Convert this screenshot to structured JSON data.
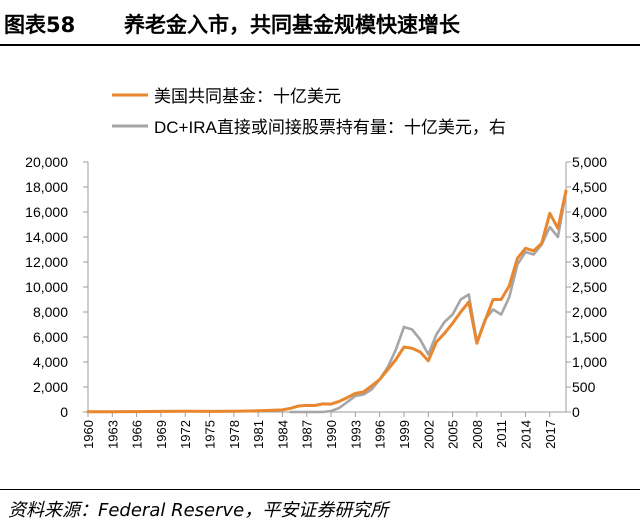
{
  "figure": {
    "label": "图表58",
    "title": "养老金入市，共同基金规模快速增长"
  },
  "source": "资料来源：Federal Reserve，平安证券研究所",
  "colors": {
    "mutual_funds": "#E8872F",
    "dc_ira": "#A6A6A6",
    "axis": "#9E9E9E",
    "text": "#000000"
  },
  "chart_data": {
    "type": "line",
    "title": "",
    "xlabel": "",
    "ylabel_left": "",
    "ylabel_right": "",
    "x_tick_labels": [
      "1960",
      "1963",
      "1966",
      "1969",
      "1972",
      "1975",
      "1978",
      "1981",
      "1984",
      "1987",
      "1990",
      "1993",
      "1996",
      "1999",
      "2002",
      "2005",
      "2008",
      "2011",
      "2014",
      "2017"
    ],
    "xlim": [
      1960,
      2019
    ],
    "ylim_left": [
      0,
      20000
    ],
    "ylim_right": [
      0,
      5000
    ],
    "y_ticks_left": [
      "0",
      "2,000",
      "4,000",
      "6,000",
      "8,000",
      "10,000",
      "12,000",
      "14,000",
      "16,000",
      "18,000",
      "20,000"
    ],
    "y_ticks_right": [
      "0",
      "500",
      "1,000",
      "1,500",
      "2,000",
      "2,500",
      "3,000",
      "3,500",
      "4,000",
      "4,500",
      "5,000"
    ],
    "grid": false,
    "legend_placement": "top-left",
    "series": [
      {
        "name": "美国共同基金：十亿美元",
        "axis": "left",
        "color": "#E8872F",
        "x": [
          1960,
          1963,
          1966,
          1969,
          1972,
          1975,
          1978,
          1980,
          1982,
          1984,
          1985,
          1986,
          1987,
          1988,
          1989,
          1990,
          1991,
          1992,
          1993,
          1994,
          1995,
          1996,
          1997,
          1998,
          1999,
          2000,
          2001,
          2002,
          2003,
          2004,
          2005,
          2006,
          2007,
          2008,
          2009,
          2010,
          2011,
          2012,
          2013,
          2014,
          2015,
          2016,
          2017,
          2018,
          2019
        ],
        "y": [
          20,
          25,
          35,
          45,
          55,
          50,
          55,
          80,
          120,
          170,
          300,
          480,
          530,
          520,
          650,
          630,
          850,
          1150,
          1500,
          1600,
          2100,
          2600,
          3400,
          4200,
          5200,
          5100,
          4800,
          4100,
          5600,
          6300,
          7100,
          8000,
          8800,
          5500,
          7300,
          9000,
          9000,
          10100,
          12300,
          13100,
          12900,
          13500,
          15900,
          14700,
          17700
        ]
      },
      {
        "name": "DC+IRA直接或间接股票持有量：十亿美元，右",
        "axis": "right",
        "color": "#A6A6A6",
        "x": [
          1985,
          1987,
          1989,
          1990,
          1991,
          1992,
          1993,
          1994,
          1995,
          1996,
          1997,
          1998,
          1999,
          2000,
          2001,
          2002,
          2003,
          2004,
          2005,
          2006,
          2007,
          2008,
          2009,
          2010,
          2011,
          2012,
          2013,
          2014,
          2015,
          2016,
          2017,
          2018,
          2019
        ],
        "y": [
          0,
          0,
          0,
          20,
          80,
          200,
          320,
          350,
          450,
          650,
          900,
          1250,
          1700,
          1650,
          1450,
          1150,
          1550,
          1800,
          1950,
          2250,
          2350,
          1400,
          1850,
          2050,
          1950,
          2300,
          2950,
          3200,
          3150,
          3350,
          3700,
          3500,
          4400
        ]
      }
    ]
  }
}
